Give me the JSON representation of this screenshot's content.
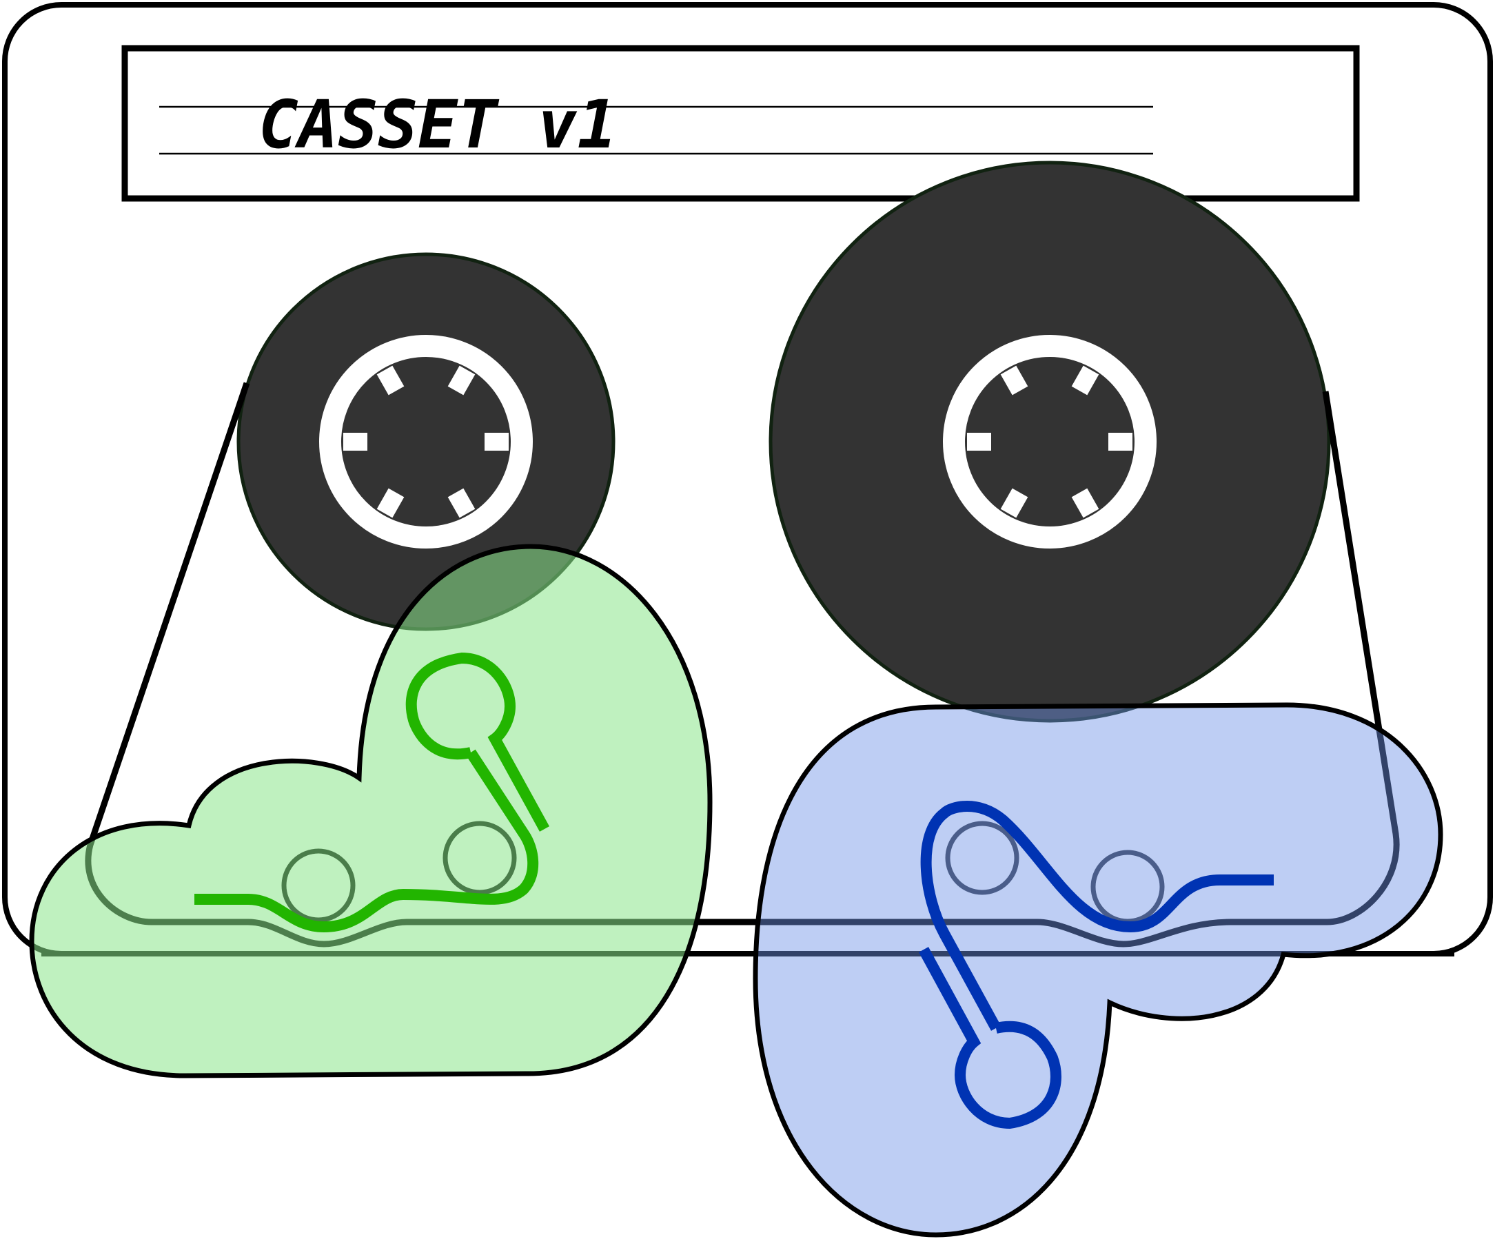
{
  "label": {
    "title": "CASSET v1"
  },
  "colors": {
    "outline": "#000000",
    "body_fill": "#ffffff",
    "reel_fill": "#333333",
    "hub_ring": "#ffffff",
    "left_blob_fill": "#b0f0b0",
    "left_blob_stroke": "#22b500",
    "left_node_stroke": "#4a7d4a",
    "right_blob_fill": "#a6bef0",
    "right_blob_stroke": "#0033b3",
    "right_node_stroke": "#4a5d8a"
  },
  "icons": [
    "cassette-tape",
    "left-reel",
    "right-reel",
    "green-network-blob",
    "blue-network-blob"
  ]
}
